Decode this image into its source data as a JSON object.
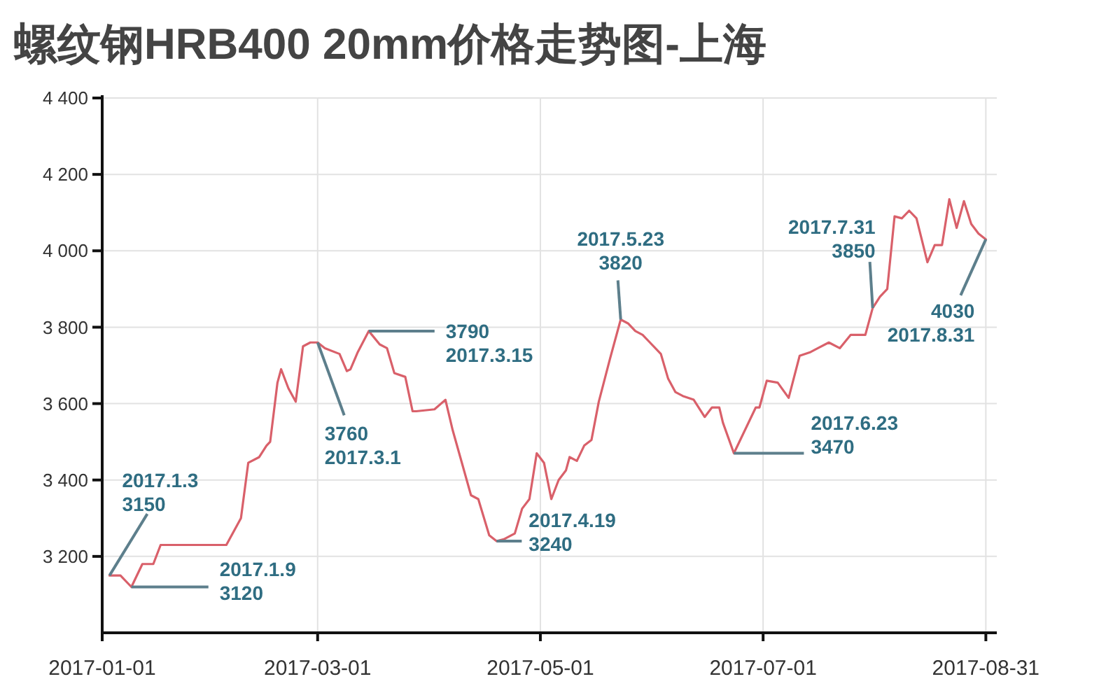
{
  "chart_data": {
    "type": "line",
    "title": "螺纹钢HRB400 20mm价格走势图-上海",
    "xlim": [
      "2017-01-01",
      "2017-09-03"
    ],
    "xticks": [
      "2017-01-01",
      "2017-03-01",
      "2017-05-01",
      "2017-07-01",
      "2017-08-31"
    ],
    "ylim": [
      3000,
      4400
    ],
    "yticks": [
      {
        "value": 3200,
        "label": "3 200"
      },
      {
        "value": 3400,
        "label": "3 400"
      },
      {
        "value": 3600,
        "label": "3 600"
      },
      {
        "value": 3800,
        "label": "3 800"
      },
      {
        "value": 4000,
        "label": "4 000"
      },
      {
        "value": 4200,
        "label": "4 200"
      },
      {
        "value": 4400,
        "label": "4 400"
      }
    ],
    "grid": true,
    "series": [
      {
        "color": "#d9606a",
        "x": [
          "2017-01-03",
          "2017-01-06",
          "2017-01-09",
          "2017-01-12",
          "2017-01-15",
          "2017-01-17",
          "2017-02-04",
          "2017-02-08",
          "2017-02-10",
          "2017-02-13",
          "2017-02-15",
          "2017-02-16",
          "2017-02-18",
          "2017-02-19",
          "2017-02-21",
          "2017-02-23",
          "2017-02-25",
          "2017-02-27",
          "2017-03-01",
          "2017-03-03",
          "2017-03-07",
          "2017-03-09",
          "2017-03-10",
          "2017-03-12",
          "2017-03-15",
          "2017-03-18",
          "2017-03-20",
          "2017-03-22",
          "2017-03-25",
          "2017-03-27",
          "2017-03-28",
          "2017-04-02",
          "2017-04-05",
          "2017-04-07",
          "2017-04-12",
          "2017-04-14",
          "2017-04-17",
          "2017-04-19",
          "2017-04-21",
          "2017-04-24",
          "2017-04-26",
          "2017-04-28",
          "2017-04-30",
          "2017-05-02",
          "2017-05-04",
          "2017-05-06",
          "2017-05-08",
          "2017-05-09",
          "2017-05-11",
          "2017-05-13",
          "2017-05-15",
          "2017-05-17",
          "2017-05-20",
          "2017-05-23",
          "2017-05-25",
          "2017-05-27",
          "2017-05-29",
          "2017-05-31",
          "2017-06-03",
          "2017-06-05",
          "2017-06-07",
          "2017-06-09",
          "2017-06-12",
          "2017-06-15",
          "2017-06-17",
          "2017-06-19",
          "2017-06-20",
          "2017-06-23",
          "2017-06-26",
          "2017-06-29",
          "2017-06-30",
          "2017-07-02",
          "2017-07-05",
          "2017-07-08",
          "2017-07-11",
          "2017-07-14",
          "2017-07-16",
          "2017-07-19",
          "2017-07-22",
          "2017-07-25",
          "2017-07-29",
          "2017-07-31",
          "2017-08-02",
          "2017-08-04",
          "2017-08-06",
          "2017-08-08",
          "2017-08-10",
          "2017-08-12",
          "2017-08-15",
          "2017-08-17",
          "2017-08-19",
          "2017-08-21",
          "2017-08-23",
          "2017-08-25",
          "2017-08-27",
          "2017-08-29",
          "2017-08-31"
        ],
        "values": [
          3150,
          3150,
          3120,
          3180,
          3180,
          3230,
          3230,
          3300,
          3445,
          3460,
          3490,
          3500,
          3655,
          3690,
          3640,
          3605,
          3750,
          3760,
          3760,
          3745,
          3730,
          3685,
          3690,
          3735,
          3790,
          3755,
          3745,
          3680,
          3670,
          3580,
          3580,
          3585,
          3610,
          3530,
          3360,
          3350,
          3255,
          3240,
          3245,
          3260,
          3325,
          3350,
          3470,
          3445,
          3350,
          3400,
          3425,
          3460,
          3450,
          3490,
          3505,
          3605,
          3715,
          3820,
          3810,
          3790,
          3780,
          3760,
          3730,
          3665,
          3630,
          3620,
          3610,
          3565,
          3590,
          3590,
          3550,
          3470,
          3530,
          3590,
          3590,
          3660,
          3655,
          3615,
          3725,
          3735,
          3745,
          3760,
          3745,
          3780,
          3780,
          3850,
          3880,
          3900,
          4090,
          4085,
          4105,
          4085,
          3970,
          4015,
          4015,
          4135,
          4060,
          4130,
          4070,
          4045,
          4030
        ]
      }
    ],
    "annotations": [
      {
        "text": "2017.1.3\n3150",
        "x": "2017-01-03",
        "y": 3150
      },
      {
        "text": "2017.1.9\n3120",
        "x": "2017-01-09",
        "y": 3120
      },
      {
        "text": "3760\n2017.3.1",
        "x": "2017-03-01",
        "y": 3760
      },
      {
        "text": "3790\n2017.3.15",
        "x": "2017-03-15",
        "y": 3790
      },
      {
        "text": "2017.4.19\n3240",
        "x": "2017-04-19",
        "y": 3240
      },
      {
        "text": "2017.5.23\n3820",
        "x": "2017-05-23",
        "y": 3820
      },
      {
        "text": "2017.6.23\n3470",
        "x": "2017-06-23",
        "y": 3470
      },
      {
        "text": "2017.7.31\n3850",
        "x": "2017-07-31",
        "y": 3850
      },
      {
        "text": "4030\n2017.8.31",
        "x": "2017-08-31",
        "y": 4030
      }
    ]
  }
}
